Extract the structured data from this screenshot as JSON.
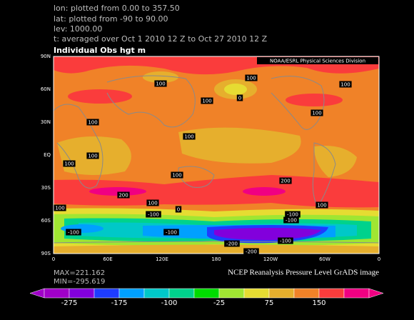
{
  "header": {
    "lines": [
      "lon: plotted from  0.00 to 357.50",
      "lat: plotted from -90 to 90.00",
      "lev: 1000.00",
      "t: averaged over Oct 1 2010 12 Z to Oct 27 2010 12 Z"
    ]
  },
  "map": {
    "title": "Individual Obs hgt m",
    "credit": "NOAA/ESRL Physical Sciences Division",
    "lat_labels": [
      "90N",
      "60N",
      "30N",
      "EQ",
      "30S",
      "60S",
      "90S"
    ],
    "lon_labels": [
      "0",
      "60E",
      "120E",
      "180",
      "120W",
      "60W",
      "0"
    ],
    "contour_labels": [
      "100",
      "100",
      "0",
      "100",
      "100",
      "100",
      "100",
      "100",
      "100",
      "100",
      "100",
      "200",
      "200",
      "100",
      "100",
      "100",
      "0",
      "-100",
      "-100",
      "-100",
      "-100",
      "-100",
      "-200",
      "-100",
      "-200"
    ]
  },
  "footer": {
    "max": "MAX=221.162",
    "min": "MIN=-295.619",
    "source": "NCEP Reanalysis Pressure Level GrADS image"
  },
  "colorbar": {
    "colors": [
      "#a000c8",
      "#8200dc",
      "#1e3cff",
      "#00a0ff",
      "#00c8c8",
      "#00d28c",
      "#00dc00",
      "#a0e632",
      "#e6dc32",
      "#e6af2d",
      "#f08228",
      "#fa3c3c",
      "#f00082"
    ],
    "labels": [
      "-275",
      "-175",
      "-100",
      "-25",
      "75",
      "150"
    ]
  }
}
